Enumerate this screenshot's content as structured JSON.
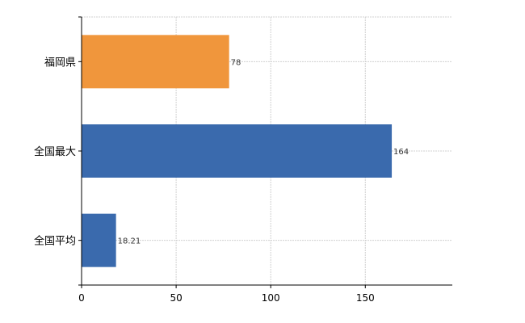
{
  "chart_data": {
    "type": "bar",
    "orientation": "horizontal",
    "categories": [
      "福岡県",
      "全国最大",
      "全国平均"
    ],
    "values": [
      78,
      164,
      18.21
    ],
    "data_labels": [
      "78",
      "164",
      "18.21"
    ],
    "colors": [
      "#F0963C",
      "#3A6AAD",
      "#3A6AAD"
    ],
    "xlim": [
      0,
      196
    ],
    "x_ticks": [
      0,
      50,
      100,
      150
    ],
    "x_tick_labels": [
      "0",
      "50",
      "100",
      "150"
    ],
    "grid": true,
    "legend": "none",
    "title": "",
    "xlabel": "",
    "ylabel": ""
  }
}
